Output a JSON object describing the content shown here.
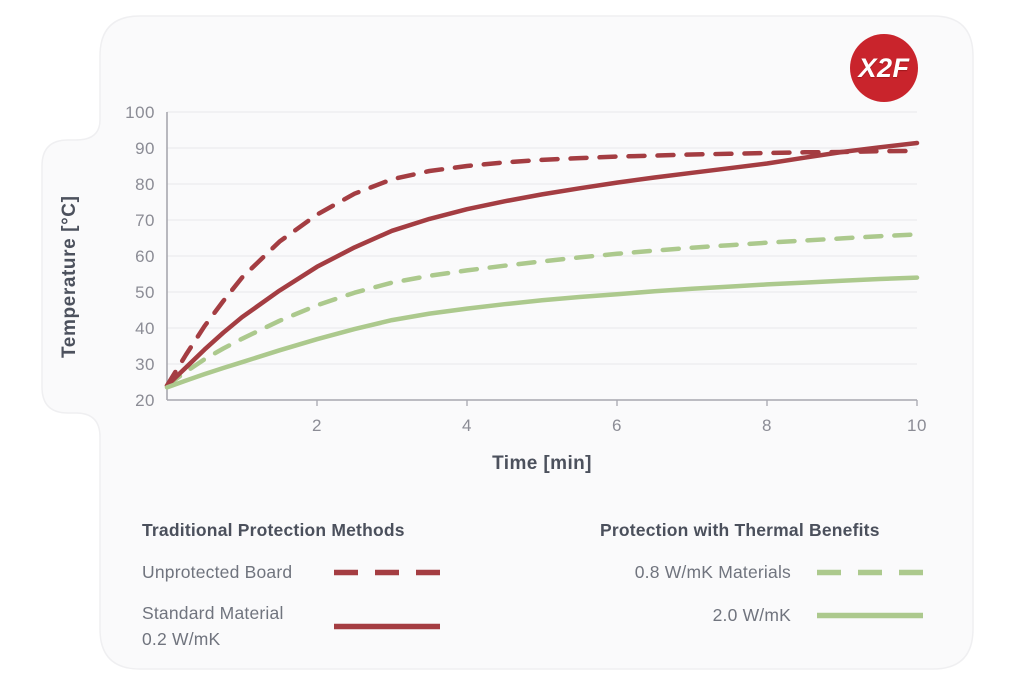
{
  "logo": {
    "text": "X2F",
    "bg_color": "#C9242C",
    "text_color": "#FFFFFF"
  },
  "chart_data": {
    "type": "line",
    "title": "",
    "xlabel": "Time [min]",
    "ylabel": "Temperature [°C]",
    "xlim": [
      0,
      10
    ],
    "ylim": [
      20,
      100
    ],
    "x_ticks": [
      2,
      4,
      6,
      8,
      10
    ],
    "y_ticks": [
      20,
      30,
      40,
      50,
      60,
      70,
      80,
      90,
      100
    ],
    "grid": "horizontal",
    "colors": {
      "red": "#A43D42",
      "green": "#ACC98D",
      "axis": "#A8A8AF",
      "gridline": "#ECECEE",
      "tick_text": "#8B8C95"
    },
    "x": [
      0,
      0.25,
      0.5,
      0.75,
      1,
      1.5,
      2,
      2.5,
      3,
      3.5,
      4,
      4.5,
      5,
      5.5,
      6,
      6.5,
      7,
      7.5,
      8,
      8.5,
      9,
      9.5,
      10
    ],
    "series": [
      {
        "name": "Unprotected Board",
        "color": "#A43D42",
        "style": "dashed",
        "values": [
          24,
          32.5,
          40.5,
          47.5,
          54,
          64,
          71.5,
          77.3,
          81.3,
          83.6,
          85,
          86,
          86.7,
          87.2,
          87.6,
          87.9,
          88.2,
          88.4,
          88.6,
          88.8,
          88.9,
          89.1,
          89.2
        ]
      },
      {
        "name": "Standard Material 0.2 W/mK",
        "color": "#A43D42",
        "style": "solid",
        "values": [
          24,
          29,
          34,
          38.7,
          43,
          50.4,
          57,
          62.4,
          67,
          70.3,
          73,
          75.2,
          77.1,
          78.8,
          80.4,
          81.8,
          83.1,
          84.4,
          85.7,
          87.3,
          88.9,
          90.2,
          91.4
        ]
      },
      {
        "name": "0.8 W/mK Materials",
        "color": "#ACC98D",
        "style": "dashed",
        "values": [
          24,
          27.8,
          31.3,
          34.3,
          37,
          42,
          46.3,
          49.8,
          52.6,
          54.5,
          56,
          57.3,
          58.5,
          59.6,
          60.6,
          61.5,
          62.3,
          63,
          63.7,
          64.3,
          64.9,
          65.5,
          66
        ]
      },
      {
        "name": "2.0 W/mK",
        "color": "#ACC98D",
        "style": "solid",
        "values": [
          23.5,
          25.4,
          27.2,
          28.9,
          30.5,
          33.8,
          36.9,
          39.7,
          42.2,
          44,
          45.4,
          46.6,
          47.7,
          48.6,
          49.4,
          50.2,
          50.9,
          51.5,
          52.1,
          52.6,
          53.1,
          53.6,
          54
        ]
      }
    ]
  },
  "legend": {
    "groups": [
      {
        "title": "Traditional Protection Methods",
        "items": [
          {
            "label_lines": [
              "Unprotected Board"
            ],
            "series": 0
          },
          {
            "label_lines": [
              "Standard Material",
              "0.2 W/mK"
            ],
            "series": 1
          }
        ]
      },
      {
        "title": "Protection with Thermal Benefits",
        "items": [
          {
            "label_lines": [
              "0.8 W/mK Materials"
            ],
            "series": 2
          },
          {
            "label_lines": [
              "2.0 W/mK"
            ],
            "series": 3
          }
        ]
      }
    ]
  }
}
